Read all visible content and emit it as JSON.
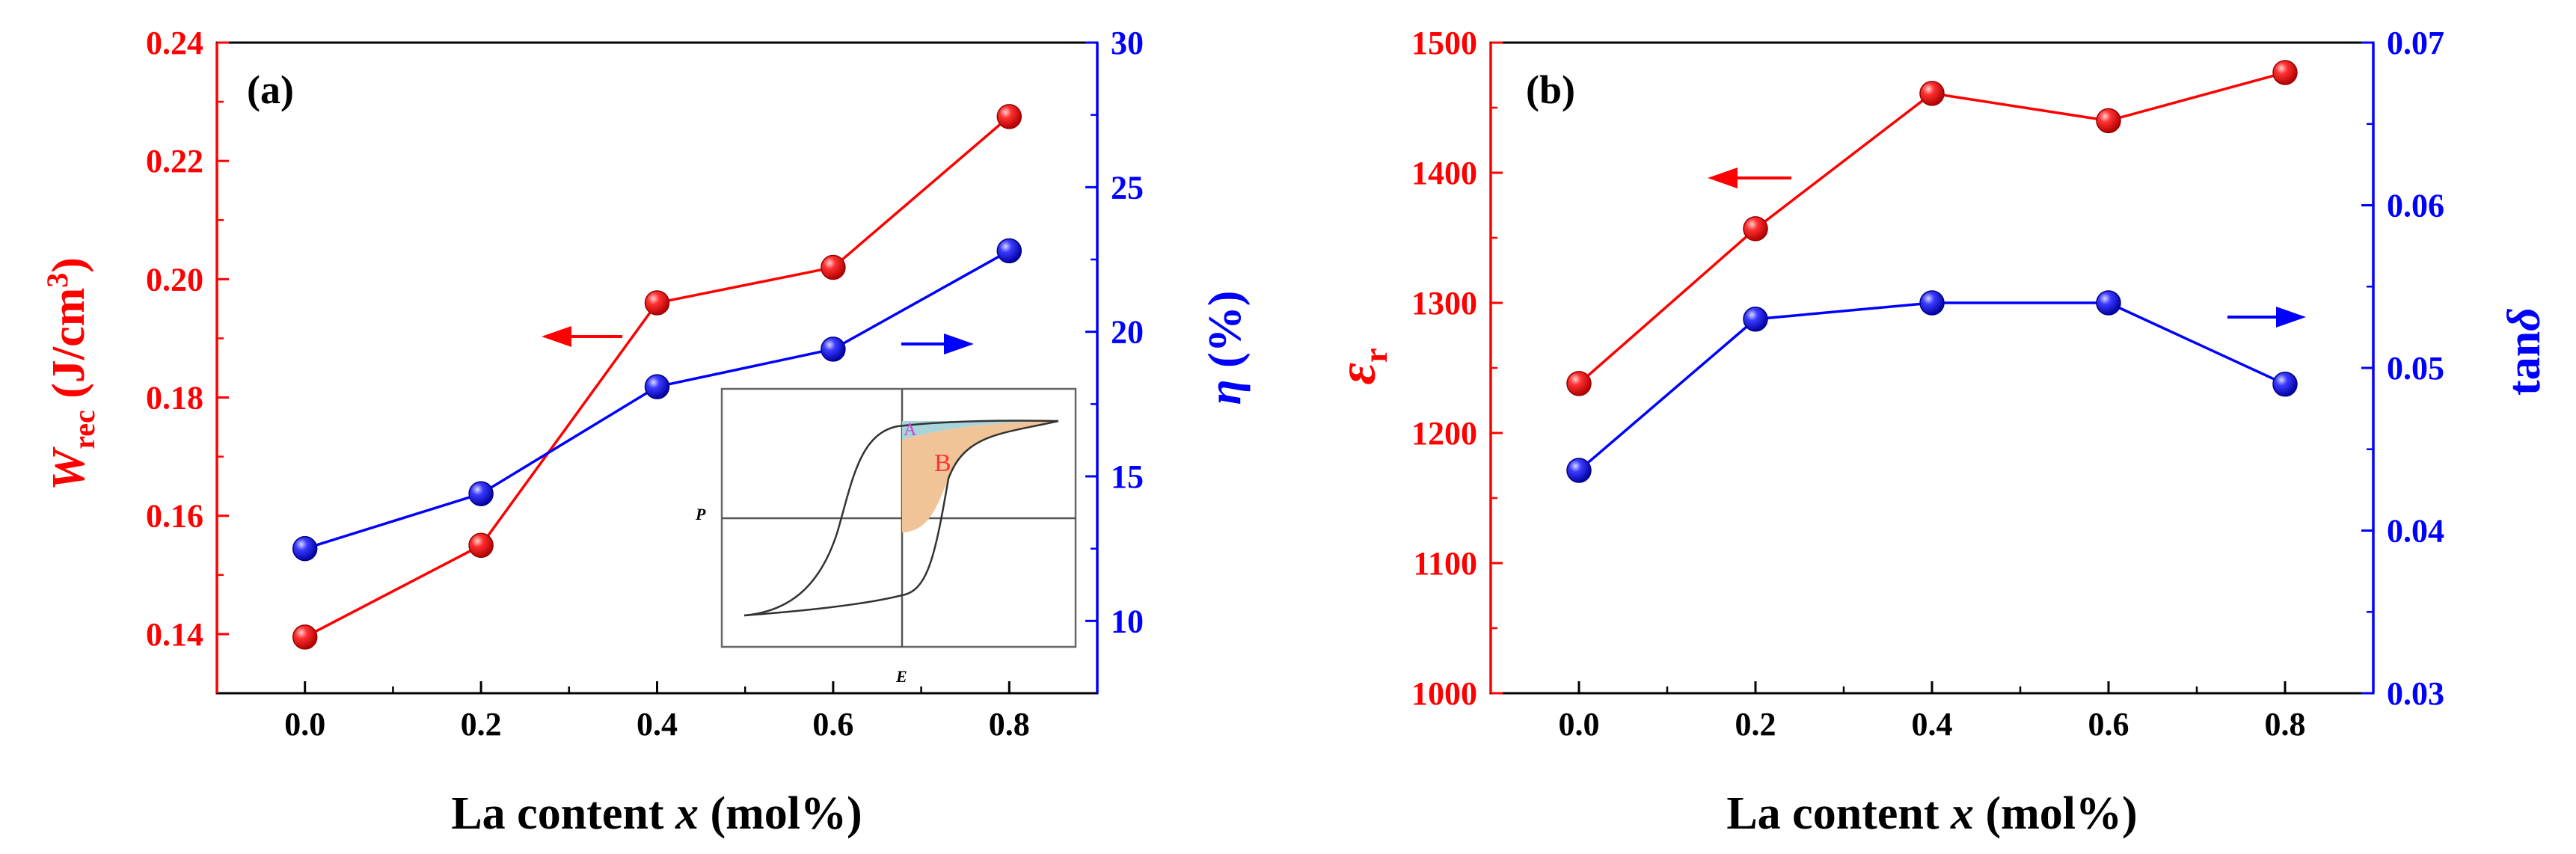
{
  "colors": {
    "red": "#ff0000",
    "blue": "#0000ff",
    "black": "#000000",
    "inset_fill_a": "#a8d4dc",
    "inset_fill_b": "#f0c496"
  },
  "chart_data": [
    {
      "id": "a",
      "type": "line",
      "panel_label": "(a)",
      "xlabel_main": "La content ",
      "xlabel_var": "x",
      "xlabel_unit": " (mol%)",
      "xlim": [
        -0.1,
        0.9
      ],
      "x_ticks": [
        0.0,
        0.2,
        0.4,
        0.6,
        0.8
      ],
      "x_tick_labels": [
        "0.0",
        "0.2",
        "0.4",
        "0.6",
        "0.8"
      ],
      "y_left": {
        "var": "W",
        "sub": "rec",
        "unit": " (J/cm",
        "sup": "3",
        "close": ")",
        "lim": [
          0.13,
          0.24
        ],
        "ticks": [
          0.14,
          0.16,
          0.18,
          0.2,
          0.22,
          0.24
        ],
        "tick_labels": [
          "0.14",
          "0.16",
          "0.18",
          "0.20",
          "0.22",
          "0.24"
        ]
      },
      "y_right": {
        "var": "η",
        "unit": " (%)",
        "lim": [
          7.5,
          30
        ],
        "ticks": [
          10,
          15,
          20,
          25,
          30
        ],
        "tick_labels": [
          "10",
          "15",
          "20",
          "25",
          "30"
        ]
      },
      "series": [
        {
          "name": "W_rec",
          "axis": "left",
          "color": "#ff0000",
          "x": [
            0.0,
            0.2,
            0.4,
            0.6,
            0.8
          ],
          "values": [
            0.1395,
            0.155,
            0.196,
            0.202,
            0.2275
          ]
        },
        {
          "name": "eta",
          "axis": "right",
          "color": "#0000ff",
          "x": [
            0.0,
            0.2,
            0.4,
            0.6,
            0.8
          ],
          "values": [
            12.5,
            14.4,
            18.1,
            19.4,
            22.8
          ]
        }
      ],
      "annotations": {
        "left_arrow": "points to left axis (W_rec)",
        "right_arrow": "points to right axis (eta)"
      },
      "inset": {
        "x_label": "E",
        "y_label": "P",
        "region_a": "A",
        "region_b": "B"
      }
    },
    {
      "id": "b",
      "type": "line",
      "panel_label": "(b)",
      "xlabel_main": "La content ",
      "xlabel_var": "x",
      "xlabel_unit": " (mol%)",
      "xlim": [
        -0.1,
        0.9
      ],
      "x_ticks": [
        0.0,
        0.2,
        0.4,
        0.6,
        0.8
      ],
      "x_tick_labels": [
        "0.0",
        "0.2",
        "0.4",
        "0.6",
        "0.8"
      ],
      "y_left": {
        "var": "ε",
        "sub": "r",
        "lim": [
          1000,
          1500
        ],
        "ticks": [
          1000,
          1100,
          1200,
          1300,
          1400,
          1500
        ],
        "tick_labels": [
          "1000",
          "1100",
          "1200",
          "1300",
          "1400",
          "1500"
        ]
      },
      "y_right": {
        "pre": "tan",
        "var": "δ",
        "lim": [
          0.03,
          0.07
        ],
        "ticks": [
          0.03,
          0.04,
          0.05,
          0.06,
          0.07
        ],
        "tick_labels": [
          "0.03",
          "0.04",
          "0.05",
          "0.06",
          "0.07"
        ]
      },
      "series": [
        {
          "name": "epsilon_r",
          "axis": "left",
          "color": "#ff0000",
          "x": [
            0.0,
            0.2,
            0.4,
            0.6,
            0.8
          ],
          "values": [
            1238,
            1357,
            1461,
            1440,
            1477
          ]
        },
        {
          "name": "tan_delta",
          "axis": "right",
          "color": "#0000ff",
          "x": [
            0.0,
            0.2,
            0.4,
            0.6,
            0.8
          ],
          "values": [
            0.0437,
            0.053,
            0.054,
            0.054,
            0.049
          ]
        }
      ],
      "annotations": {
        "left_arrow": "points to left axis (epsilon_r)",
        "right_arrow": "points to right axis (tan delta)"
      }
    }
  ]
}
